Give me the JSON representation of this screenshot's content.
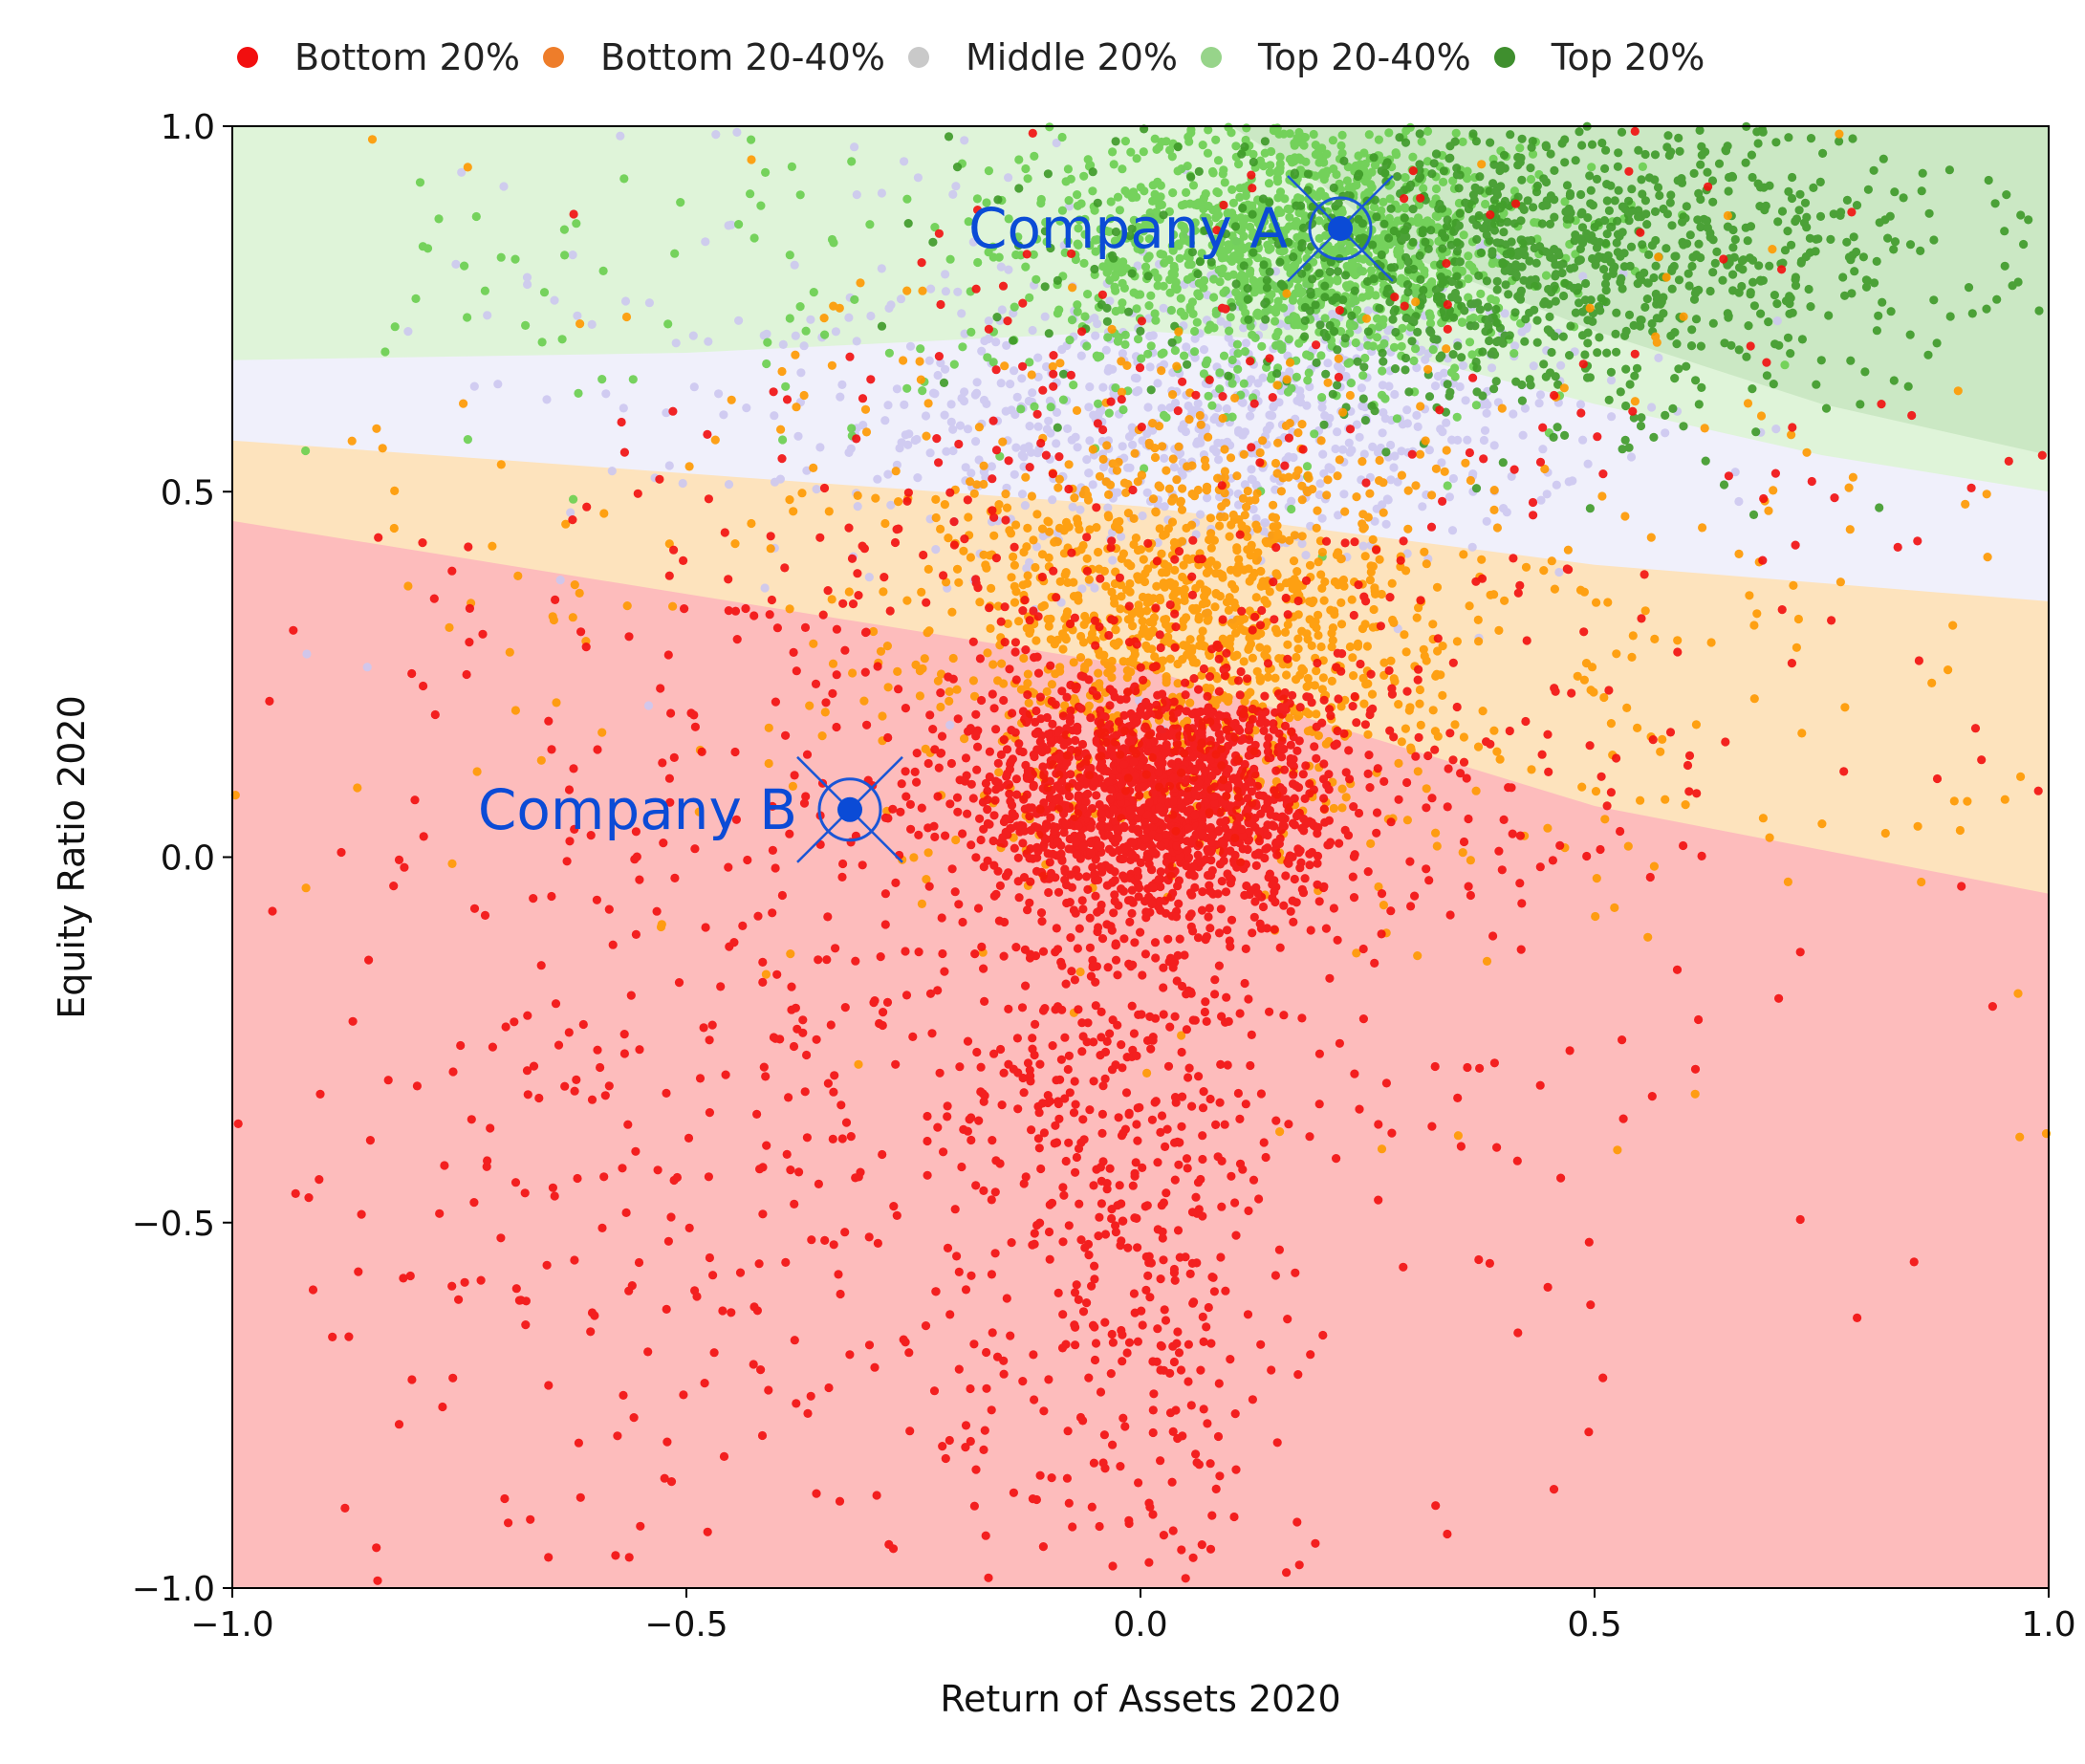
{
  "legend": [
    {
      "label": "Bottom 20%",
      "color": "#f20f0f"
    },
    {
      "label": "Bottom 20-40%",
      "color": "#ee7d2a"
    },
    {
      "label": "Middle 20%",
      "color": "#c9c9c9"
    },
    {
      "label": "Top 20-40%",
      "color": "#97d48a"
    },
    {
      "label": "Top 20%",
      "color": "#3f8f2e"
    }
  ],
  "chart_data": {
    "type": "scatter",
    "xlabel": "Return of Assets 2020",
    "ylabel": "Equity Ratio 2020",
    "xlim": [
      -1.0,
      1.0
    ],
    "ylim": [
      -1.0,
      1.0
    ],
    "xticks": [
      -1.0,
      -0.5,
      0.0,
      0.5,
      1.0
    ],
    "xtick_labels": [
      "−1.0",
      "−0.5",
      "0.0",
      "0.5",
      "1.0"
    ],
    "yticks": [
      -1.0,
      -0.5,
      0.0,
      0.5,
      1.0
    ],
    "ytick_labels": [
      "−1.0",
      "−0.5",
      "0.0",
      "0.5",
      "1.0"
    ],
    "grid": false,
    "legend_position": "top",
    "regions": [
      {
        "class": "Bottom 20%",
        "color": "#fdbcbc",
        "upper_boundary": [
          [
            -1.0,
            0.46
          ],
          [
            0.0,
            0.26
          ],
          [
            0.5,
            0.07
          ],
          [
            1.0,
            -0.05
          ]
        ]
      },
      {
        "class": "Bottom 20-40%",
        "color": "#fde3bd",
        "upper_boundary": [
          [
            -1.0,
            0.57
          ],
          [
            0.0,
            0.48
          ],
          [
            0.5,
            0.4
          ],
          [
            1.0,
            0.35
          ]
        ]
      },
      {
        "class": "Middle 20%",
        "color": "#f0f0fb",
        "upper_boundary": [
          [
            -1.0,
            0.68
          ],
          [
            -0.5,
            0.69
          ],
          [
            0.0,
            0.72
          ],
          [
            0.25,
            0.7
          ],
          [
            0.5,
            0.62
          ],
          [
            0.75,
            0.55
          ],
          [
            1.0,
            0.5
          ]
        ]
      },
      {
        "class": "Top 20-40%",
        "color": "#dff4d9",
        "upper_boundary": [
          [
            -1.0,
            1.0
          ],
          [
            0.1,
            1.0
          ],
          [
            0.2,
            0.92
          ],
          [
            0.3,
            0.82
          ],
          [
            0.5,
            0.72
          ],
          [
            0.75,
            0.62
          ],
          [
            1.0,
            0.55
          ]
        ]
      },
      {
        "class": "Top 20%",
        "color": "#cbe8c4",
        "upper_boundary": [
          [
            0.1,
            1.0
          ],
          [
            1.0,
            1.0
          ]
        ]
      }
    ],
    "series": [
      {
        "name": "Bottom 20%",
        "color": "#f20f0f",
        "clusters": [
          {
            "cx": 0.02,
            "cy": 0.08,
            "sx": 0.1,
            "sy": 0.08,
            "n": 1400
          },
          {
            "cx": -0.02,
            "cy": -0.35,
            "sx": 0.09,
            "sy": 0.35,
            "n": 650
          },
          {
            "cx": -0.45,
            "cy": -0.35,
            "sx": 0.25,
            "sy": 0.35,
            "n": 350
          },
          {
            "cx": 0.0,
            "cy": 0.2,
            "sx": 0.35,
            "sy": 0.3,
            "n": 450
          },
          {
            "cx": 0.3,
            "cy": 0.2,
            "sx": 0.35,
            "sy": 0.6,
            "n": 220
          }
        ]
      },
      {
        "name": "Bottom 20-40%",
        "color": "#ff9900",
        "clusters": [
          {
            "cx": 0.06,
            "cy": 0.32,
            "sx": 0.13,
            "sy": 0.13,
            "n": 1000
          },
          {
            "cx": 0.3,
            "cy": 0.3,
            "sx": 0.35,
            "sy": 0.25,
            "n": 300
          },
          {
            "cx": -0.3,
            "cy": 0.4,
            "sx": 0.3,
            "sy": 0.25,
            "n": 150
          }
        ]
      },
      {
        "name": "Middle 20%",
        "color": "#cdc8f0",
        "clusters": [
          {
            "cx": 0.1,
            "cy": 0.6,
            "sx": 0.2,
            "sy": 0.1,
            "n": 700
          },
          {
            "cx": -0.3,
            "cy": 0.7,
            "sx": 0.35,
            "sy": 0.2,
            "n": 150
          }
        ]
      },
      {
        "name": "Top 20-40%",
        "color": "#6acf4f",
        "clusters": [
          {
            "cx": 0.18,
            "cy": 0.84,
            "sx": 0.13,
            "sy": 0.09,
            "n": 1300
          },
          {
            "cx": -0.2,
            "cy": 0.8,
            "sx": 0.35,
            "sy": 0.15,
            "n": 150
          }
        ]
      },
      {
        "name": "Top 20%",
        "color": "#3e9a28",
        "clusters": [
          {
            "cx": 0.45,
            "cy": 0.82,
            "sx": 0.22,
            "sy": 0.1,
            "n": 1100
          }
        ]
      }
    ],
    "annotations": [
      {
        "label": "Company A",
        "x": 0.22,
        "y": 0.86
      },
      {
        "label": "Company B",
        "x": -0.32,
        "y": 0.065
      }
    ]
  }
}
